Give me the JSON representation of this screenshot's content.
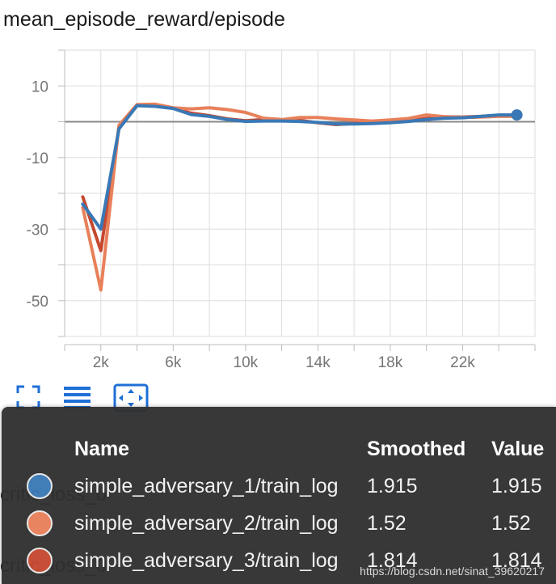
{
  "chart_data": {
    "type": "line",
    "title": "mean_episode_reward/episode",
    "xlabel": "",
    "ylabel": "",
    "xlim": [
      0,
      26000
    ],
    "ylim": [
      -60,
      20
    ],
    "y_ticks": [
      10,
      -10,
      -30,
      -50
    ],
    "y_tick_labels": [
      "10",
      "-10",
      "-30",
      "-50"
    ],
    "x_ticks": [
      2000,
      6000,
      10000,
      14000,
      18000,
      22000
    ],
    "x_tick_labels": [
      "2k",
      "6k",
      "10k",
      "14k",
      "18k",
      "22k"
    ],
    "grid": true,
    "series": [
      {
        "name": "simple_adversary_1/train_log",
        "color": "#3a78b5",
        "x": [
          1000,
          2000,
          3000,
          4000,
          5000,
          6000,
          7000,
          8000,
          9000,
          10000,
          11000,
          12000,
          13000,
          14000,
          15000,
          16000,
          17000,
          18000,
          19000,
          20000,
          21000,
          22000,
          23000,
          24000,
          25000
        ],
        "y": [
          -23,
          -30,
          -2,
          4.5,
          4.3,
          3.7,
          2.0,
          1.5,
          0.6,
          0.1,
          0.2,
          0.2,
          0.1,
          -0.2,
          -0.6,
          -0.6,
          -0.5,
          -0.3,
          0.1,
          0.6,
          1.0,
          1.1,
          1.5,
          1.9,
          1.9
        ]
      },
      {
        "name": "simple_adversary_2/train_log",
        "color": "#e8805a",
        "x": [
          1000,
          2000,
          3000,
          4000,
          5000,
          6000,
          7000,
          8000,
          9000,
          10000,
          11000,
          12000,
          13000,
          14000,
          15000,
          16000,
          17000,
          18000,
          19000,
          20000,
          21000,
          22000,
          23000,
          24000,
          25000
        ],
        "y": [
          -24,
          -47,
          -1,
          4.8,
          4.9,
          3.9,
          3.6,
          3.9,
          3.4,
          2.6,
          1.0,
          0.6,
          1.2,
          1.2,
          0.8,
          0.5,
          0.2,
          0.5,
          0.9,
          1.9,
          1.4,
          1.2,
          1.3,
          1.5,
          1.5
        ]
      },
      {
        "name": "simple_adversary_3/train_log",
        "color": "#c5482f",
        "x": [
          1000,
          2000,
          3000,
          4000,
          5000,
          6000,
          7000,
          8000,
          9000,
          10000,
          11000,
          12000,
          13000,
          14000,
          15000,
          16000,
          17000,
          18000,
          19000,
          20000,
          21000,
          22000,
          23000,
          24000,
          25000
        ],
        "y": [
          -21,
          -36,
          -1.5,
          4.6,
          4.6,
          3.8,
          2.4,
          1.7,
          0.8,
          0.3,
          0.6,
          0.4,
          0.4,
          -0.3,
          -0.8,
          -0.5,
          -0.3,
          -0.2,
          0.2,
          0.9,
          1.4,
          1.3,
          1.5,
          1.8,
          1.8
        ]
      }
    ],
    "highlight_point": {
      "series": 0,
      "x": 25000,
      "y": 1.9
    }
  },
  "tooltip": {
    "headers": {
      "name": "Name",
      "smoothed": "Smoothed",
      "value": "Value"
    },
    "rows": [
      {
        "name": "simple_adversary_1/train_log",
        "smoothed": "1.915",
        "value": "1.915",
        "color": "#3a78b5"
      },
      {
        "name": "simple_adversary_2/train_log",
        "smoothed": "1.52",
        "value": "1.52",
        "color": "#e8805a"
      },
      {
        "name": "simple_adversary_3/train_log",
        "smoothed": "1.814",
        "value": "1.814",
        "color": "#c5482f"
      }
    ]
  },
  "background_labels": [
    "critic_loss_0",
    "critic_loss_0"
  ],
  "watermark": "https://blog.csdn.net/sinat_39620217",
  "toolbar": {
    "icons": [
      "fullscreen-icon",
      "list-icon",
      "fit-domain-icon"
    ],
    "accent": "#1e6fd6"
  }
}
